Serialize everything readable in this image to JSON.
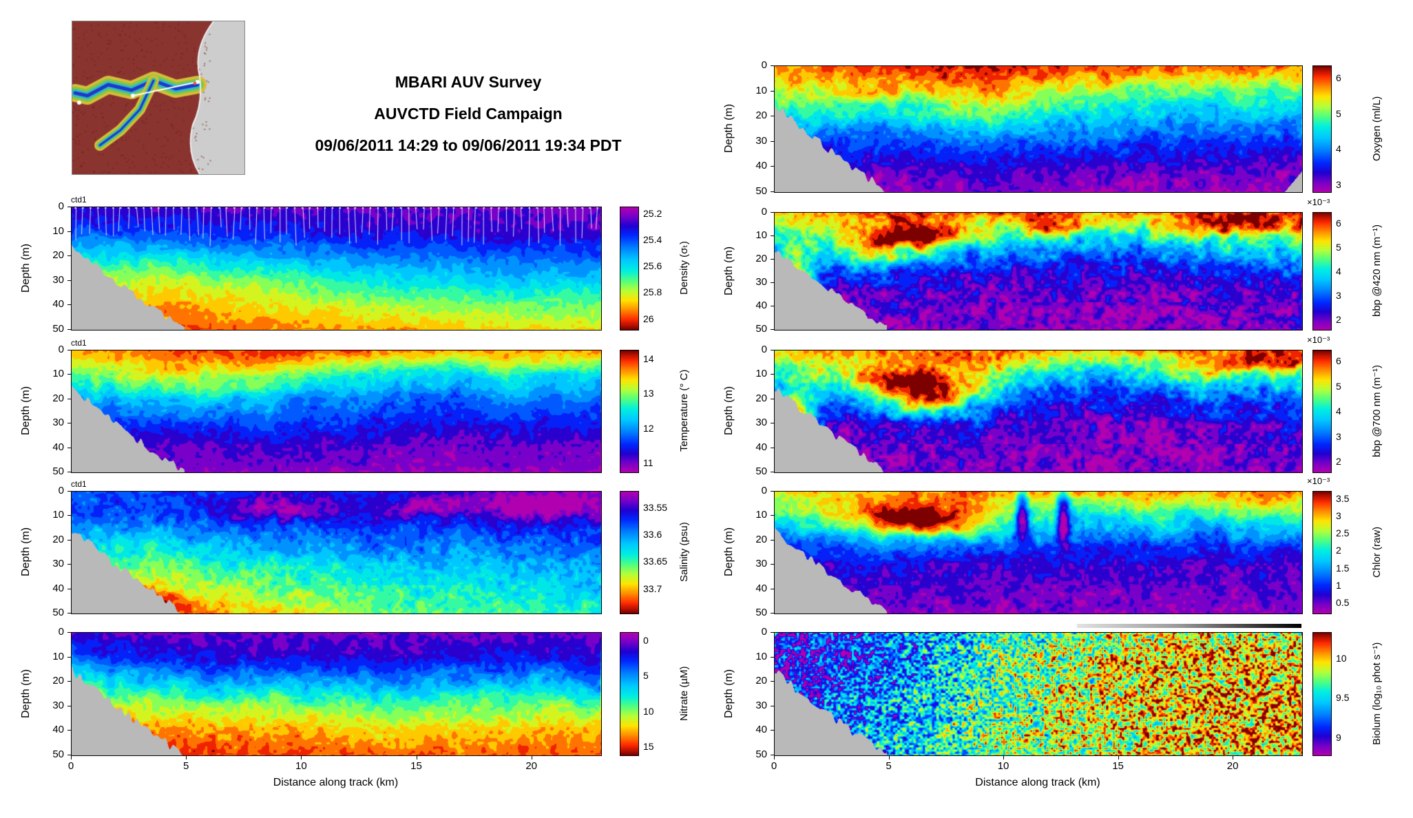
{
  "figure": {
    "title_lines": [
      "MBARI AUV Survey",
      "AUVCTD Field Campaign",
      "09/06/2011 14:29 to 09/06/2011 19:34 PDT"
    ],
    "xlabel": "Distance along track (km)",
    "x_ticks": [
      "0",
      "5",
      "10",
      "15",
      "20"
    ],
    "x_max_km": 23,
    "depth_ticks": [
      "0",
      "10",
      "20",
      "30",
      "40",
      "50"
    ],
    "depth_max_m": 50,
    "seafloor_color": "#b9b9b9",
    "background": "#ffffff",
    "biolum_strip": {
      "x_start_km": 13.2,
      "colors": [
        "#e2e2e2",
        "#000000"
      ]
    }
  },
  "map_inset": {
    "type": "bathymetry-map",
    "content": "Monterey Bay bathymetry with white AUV track line"
  },
  "colormap_stops": [
    [
      0.0,
      "#b000b0"
    ],
    [
      0.07,
      "#7a00c8"
    ],
    [
      0.15,
      "#2000d0"
    ],
    [
      0.23,
      "#0028ff"
    ],
    [
      0.33,
      "#0080ff"
    ],
    [
      0.43,
      "#00c8ff"
    ],
    [
      0.52,
      "#00f0e0"
    ],
    [
      0.6,
      "#50ff80"
    ],
    [
      0.68,
      "#b4ff38"
    ],
    [
      0.76,
      "#ffe400"
    ],
    [
      0.84,
      "#ff8c00"
    ],
    [
      0.92,
      "#ff2800"
    ],
    [
      1.0,
      "#7c0000"
    ]
  ],
  "chart_data": [
    {
      "id": "density",
      "type": "heatmap",
      "ylabel": "Depth (m)",
      "annotation": "ctd1",
      "colorbar": {
        "label": "Density (σₜ)",
        "ticks": [
          "25.2",
          "25.4",
          "25.6",
          "25.8",
          "26"
        ],
        "range": [
          25.15,
          26.08
        ],
        "max_at_top": false,
        "exponent": null
      },
      "grid": {
        "x_km": [
          0,
          4.6,
          9.2,
          13.8,
          18.4,
          23
        ],
        "depth_m": [
          0,
          10,
          20,
          30,
          40,
          50
        ],
        "values": [
          [
            25.28,
            25.26,
            25.25,
            25.24,
            25.23,
            25.22
          ],
          [
            25.38,
            25.36,
            25.34,
            25.3,
            25.28,
            25.27
          ],
          [
            25.6,
            25.58,
            25.52,
            25.46,
            25.43,
            25.41
          ],
          [
            25.79,
            25.81,
            25.72,
            25.62,
            25.58,
            25.56
          ],
          [
            25.89,
            25.91,
            25.84,
            25.78,
            25.73,
            25.71
          ],
          [
            25.97,
            25.99,
            25.94,
            25.9,
            25.87,
            25.85
          ]
        ]
      },
      "render": {
        "seed": 11,
        "wave_amp_m": 3,
        "wave_cells": 11,
        "noise_amp": 0.05,
        "posterize": 15,
        "speckle": 0,
        "track_overlay": true,
        "features": []
      }
    },
    {
      "id": "temperature",
      "type": "heatmap",
      "ylabel": "Depth (m)",
      "annotation": "ctd1",
      "colorbar": {
        "label": "Temperature (° C)",
        "ticks": [
          "14",
          "13",
          "12",
          "11"
        ],
        "range": [
          10.75,
          14.25
        ],
        "max_at_top": true,
        "exponent": null
      },
      "grid": {
        "x_km": [
          0,
          4.6,
          9.2,
          13.8,
          18.4,
          23
        ],
        "depth_m": [
          0,
          10,
          20,
          30,
          40,
          50
        ],
        "values": [
          [
            13.6,
            13.9,
            14.0,
            13.8,
            13.7,
            13.6
          ],
          [
            12.8,
            13.2,
            13.0,
            12.6,
            12.4,
            12.3
          ],
          [
            12.0,
            12.2,
            12.1,
            11.9,
            11.8,
            11.8
          ],
          [
            11.6,
            11.5,
            11.6,
            11.5,
            11.4,
            11.4
          ],
          [
            11.2,
            11.1,
            11.2,
            11.1,
            11.1,
            11.0
          ],
          [
            11.0,
            10.9,
            11.0,
            10.9,
            10.9,
            10.9
          ]
        ]
      },
      "render": {
        "seed": 22,
        "wave_amp_m": 4,
        "wave_cells": 11,
        "noise_amp": 0.22,
        "posterize": 15,
        "speckle": 0,
        "features": []
      }
    },
    {
      "id": "salinity",
      "type": "heatmap",
      "ylabel": "Depth (m)",
      "annotation": "ctd1",
      "colorbar": {
        "label": "Salinity (psu)",
        "ticks": [
          "33.55",
          "33.6",
          "33.65",
          "33.7"
        ],
        "range": [
          33.52,
          33.745
        ],
        "max_at_top": false,
        "exponent": null
      },
      "grid": {
        "x_km": [
          0,
          4.6,
          9.2,
          13.8,
          18.4,
          23
        ],
        "depth_m": [
          0,
          10,
          20,
          30,
          40,
          50
        ],
        "values": [
          [
            33.58,
            33.57,
            33.56,
            33.56,
            33.55,
            33.55
          ],
          [
            33.58,
            33.58,
            33.57,
            33.57,
            33.56,
            33.56
          ],
          [
            33.62,
            33.61,
            33.6,
            33.59,
            33.58,
            33.58
          ],
          [
            33.66,
            33.65,
            33.63,
            33.62,
            33.61,
            33.6
          ],
          [
            33.7,
            33.68,
            33.66,
            33.64,
            33.63,
            33.62
          ],
          [
            33.73,
            33.71,
            33.69,
            33.66,
            33.65,
            33.64
          ]
        ]
      },
      "render": {
        "seed": 33,
        "wave_amp_m": 4,
        "wave_cells": 11,
        "noise_amp": 0.02,
        "posterize": 15,
        "speckle": 0,
        "features": [
          {
            "x_km": 9.0,
            "depth_m": 7,
            "rx_km": 2.5,
            "rz_m": 5,
            "amp": -0.045
          },
          {
            "x_km": 15.5,
            "depth_m": 6,
            "rx_km": 2.0,
            "rz_m": 4,
            "amp": -0.04
          },
          {
            "x_km": 20.5,
            "depth_m": 6,
            "rx_km": 3.0,
            "rz_m": 6,
            "amp": -0.05
          },
          {
            "x_km": 2.5,
            "depth_m": 47,
            "rx_km": 2.0,
            "rz_m": 6,
            "amp": 0.06
          }
        ]
      }
    },
    {
      "id": "nitrate",
      "type": "heatmap",
      "ylabel": "Depth (m)",
      "annotation": null,
      "colorbar": {
        "label": "Nitrate (µM)",
        "ticks": [
          "0",
          "5",
          "10",
          "15"
        ],
        "range": [
          -1.2,
          16.2
        ],
        "max_at_top": false,
        "exponent": null
      },
      "grid": {
        "x_km": [
          0,
          4.6,
          9.2,
          13.8,
          18.4,
          23
        ],
        "depth_m": [
          0,
          10,
          20,
          30,
          40,
          50
        ],
        "values": [
          [
            1.0,
            0.5,
            0.3,
            0.3,
            0.3,
            0.5
          ],
          [
            3.0,
            2.0,
            1.5,
            1.5,
            1.8,
            2.0
          ],
          [
            7.0,
            6.0,
            5.5,
            5.0,
            5.5,
            6.0
          ],
          [
            11.0,
            10.5,
            10.0,
            9.0,
            9.5,
            10.0
          ],
          [
            14.0,
            13.5,
            13.0,
            12.0,
            12.5,
            13.0
          ],
          [
            15.5,
            15.0,
            14.5,
            14.0,
            14.0,
            14.5
          ]
        ]
      },
      "render": {
        "seed": 44,
        "wave_amp_m": 4.5,
        "wave_cells": 11,
        "noise_amp": 1.2,
        "posterize": 15,
        "speckle": 0,
        "features": []
      }
    },
    {
      "id": "oxygen",
      "type": "heatmap",
      "ylabel": "Depth (m)",
      "annotation": null,
      "colorbar": {
        "label": "Oxygen (ml/L)",
        "ticks": [
          "6",
          "5",
          "4",
          "3"
        ],
        "range": [
          2.8,
          6.35
        ],
        "max_at_top": true,
        "exponent": null
      },
      "grid": {
        "x_km": [
          0,
          4.6,
          9.2,
          13.8,
          18.4,
          23
        ],
        "depth_m": [
          0,
          10,
          20,
          30,
          40,
          50
        ],
        "values": [
          [
            5.8,
            6.1,
            6.2,
            6.0,
            5.9,
            5.8
          ],
          [
            5.2,
            5.6,
            5.4,
            5.0,
            4.9,
            4.8
          ],
          [
            4.4,
            4.6,
            4.5,
            4.3,
            4.2,
            4.2
          ],
          [
            3.8,
            3.7,
            3.8,
            3.7,
            3.6,
            3.6
          ],
          [
            3.3,
            3.2,
            3.3,
            3.2,
            3.2,
            3.1
          ],
          [
            3.0,
            2.9,
            3.0,
            2.9,
            2.9,
            2.9
          ]
        ]
      },
      "render": {
        "seed": 55,
        "wave_amp_m": 5,
        "wave_cells": 11,
        "noise_amp": 0.3,
        "posterize": 15,
        "speckle": 0,
        "right_notch": true,
        "features": []
      }
    },
    {
      "id": "bbp420",
      "type": "heatmap",
      "ylabel": "Depth (m)",
      "annotation": null,
      "colorbar": {
        "label": "bbp @420 nm (m⁻¹)",
        "ticks": [
          "6",
          "5",
          "4",
          "3",
          "2"
        ],
        "range": [
          1.6,
          6.45
        ],
        "max_at_top": true,
        "exponent": "×10⁻³"
      },
      "grid": {
        "x_km": [
          0,
          4.6,
          9.2,
          13.8,
          18.4,
          23
        ],
        "depth_m": [
          0,
          10,
          20,
          30,
          40,
          50
        ],
        "values": [
          [
            5.5,
            5.8,
            6.0,
            5.6,
            5.8,
            6.0
          ],
          [
            4.0,
            5.0,
            4.5,
            3.8,
            4.2,
            4.6
          ],
          [
            2.8,
            3.4,
            3.0,
            2.6,
            2.8,
            3.2
          ],
          [
            2.2,
            2.4,
            2.3,
            2.1,
            2.2,
            2.4
          ],
          [
            2.0,
            2.1,
            2.0,
            1.9,
            2.0,
            2.1
          ],
          [
            1.9,
            2.0,
            1.9,
            1.8,
            1.9,
            2.0
          ]
        ]
      },
      "render": {
        "seed": 66,
        "wave_amp_m": 5,
        "wave_cells": 11,
        "noise_amp": 0.6,
        "posterize": 15,
        "speckle": 0,
        "features": [
          {
            "x_km": 6.0,
            "depth_m": 13,
            "rx_km": 2.2,
            "rz_m": 7,
            "amp": 2.6
          },
          {
            "x_km": 0.9,
            "depth_m": 30,
            "rx_km": 0.8,
            "rz_m": 14,
            "amp": 3.2
          },
          {
            "x_km": 12.0,
            "depth_m": 5,
            "rx_km": 1.4,
            "rz_m": 4,
            "amp": 1.2
          },
          {
            "x_km": 20.5,
            "depth_m": 4,
            "rx_km": 3.0,
            "rz_m": 4,
            "amp": 1.0
          }
        ]
      }
    },
    {
      "id": "bbp700",
      "type": "heatmap",
      "ylabel": "Depth (m)",
      "annotation": null,
      "colorbar": {
        "label": "bbp @700 nm (m⁻¹)",
        "ticks": [
          "6",
          "5",
          "4",
          "3",
          "2"
        ],
        "range": [
          1.6,
          6.45
        ],
        "max_at_top": true,
        "exponent": "×10⁻³"
      },
      "grid": {
        "x_km": [
          0,
          4.6,
          9.2,
          13.8,
          18.4,
          23
        ],
        "depth_m": [
          0,
          10,
          20,
          30,
          40,
          50
        ],
        "values": [
          [
            5.4,
            5.7,
            5.9,
            5.5,
            5.7,
            6.0
          ],
          [
            3.9,
            4.9,
            4.4,
            3.7,
            4.1,
            4.5
          ],
          [
            2.7,
            3.3,
            2.9,
            2.5,
            2.7,
            3.1
          ],
          [
            2.2,
            2.4,
            2.2,
            2.0,
            2.1,
            2.3
          ],
          [
            2.0,
            2.1,
            2.0,
            1.9,
            1.9,
            2.1
          ],
          [
            1.9,
            2.0,
            1.9,
            1.8,
            1.8,
            2.0
          ]
        ]
      },
      "render": {
        "seed": 77,
        "wave_amp_m": 5,
        "wave_cells": 11,
        "noise_amp": 0.6,
        "posterize": 15,
        "speckle": 0,
        "features": [
          {
            "x_km": 6.3,
            "depth_m": 15,
            "rx_km": 2.4,
            "rz_m": 8,
            "amp": 2.8
          },
          {
            "x_km": 0.9,
            "depth_m": 30,
            "rx_km": 0.8,
            "rz_m": 14,
            "amp": 3.0
          },
          {
            "x_km": 21.0,
            "depth_m": 5,
            "rx_km": 2.5,
            "rz_m": 4,
            "amp": 1.1
          }
        ]
      }
    },
    {
      "id": "chlor",
      "type": "heatmap",
      "ylabel": "Depth (m)",
      "annotation": null,
      "colorbar": {
        "label": "Chlor (raw)",
        "ticks": [
          "3.5",
          "3",
          "2.5",
          "2",
          "1.5",
          "1",
          "0.5"
        ],
        "range": [
          0.2,
          3.72
        ],
        "max_at_top": true,
        "exponent": "×10⁻³"
      },
      "grid": {
        "x_km": [
          0,
          4.6,
          9.2,
          13.8,
          18.4,
          23
        ],
        "depth_m": [
          0,
          10,
          20,
          30,
          40,
          50
        ],
        "values": [
          [
            2.8,
            3.0,
            3.2,
            3.0,
            3.1,
            3.2
          ],
          [
            2.2,
            3.0,
            2.4,
            1.8,
            2.0,
            2.2
          ],
          [
            1.2,
            1.6,
            1.3,
            1.0,
            1.1,
            1.2
          ],
          [
            0.7,
            0.8,
            0.7,
            0.6,
            0.6,
            0.7
          ],
          [
            0.5,
            0.6,
            0.5,
            0.5,
            0.5,
            0.5
          ],
          [
            0.5,
            0.5,
            0.4,
            0.4,
            0.4,
            0.4
          ]
        ]
      },
      "render": {
        "seed": 88,
        "wave_amp_m": 4,
        "wave_cells": 11,
        "noise_amp": 0.3,
        "posterize": 15,
        "speckle": 0,
        "features": [
          {
            "x_km": 6.5,
            "depth_m": 12,
            "rx_km": 2.6,
            "rz_m": 7,
            "amp": 1.4
          },
          {
            "x_km": 10.8,
            "depth_m": 8,
            "rx_km": 0.3,
            "rz_m": 9,
            "amp": -2.2
          },
          {
            "x_km": 12.6,
            "depth_m": 8,
            "rx_km": 0.3,
            "rz_m": 9,
            "amp": -2.2
          }
        ]
      }
    },
    {
      "id": "biolum",
      "type": "heatmap",
      "ylabel": "Depth (m)",
      "annotation": null,
      "colorbar": {
        "label": "Biolum (log₁₀ phot s⁻¹)",
        "ticks": [
          "10",
          "9.5",
          "9"
        ],
        "range": [
          8.78,
          10.33
        ],
        "max_at_top": true,
        "exponent": null
      },
      "grid": {
        "x_km": [
          0,
          4.6,
          9.2,
          13.8,
          18.4,
          23
        ],
        "depth_m": [
          0,
          10,
          20,
          30,
          40,
          50
        ],
        "values": [
          [
            9.1,
            9.2,
            9.5,
            9.8,
            9.9,
            9.9
          ],
          [
            9.0,
            9.2,
            9.6,
            9.9,
            10.0,
            10.0
          ],
          [
            9.0,
            9.3,
            9.6,
            9.9,
            10.0,
            10.0
          ],
          [
            9.1,
            9.3,
            9.7,
            9.9,
            10.0,
            10.1
          ],
          [
            9.1,
            9.4,
            9.7,
            9.9,
            10.0,
            10.1
          ],
          [
            9.2,
            9.4,
            9.7,
            9.9,
            10.0,
            10.0
          ]
        ]
      },
      "render": {
        "seed": 99,
        "wave_amp_m": 1.5,
        "wave_cells": 11,
        "noise_amp": 0.22,
        "posterize": 0,
        "speckle": 0.5,
        "features": []
      }
    }
  ]
}
